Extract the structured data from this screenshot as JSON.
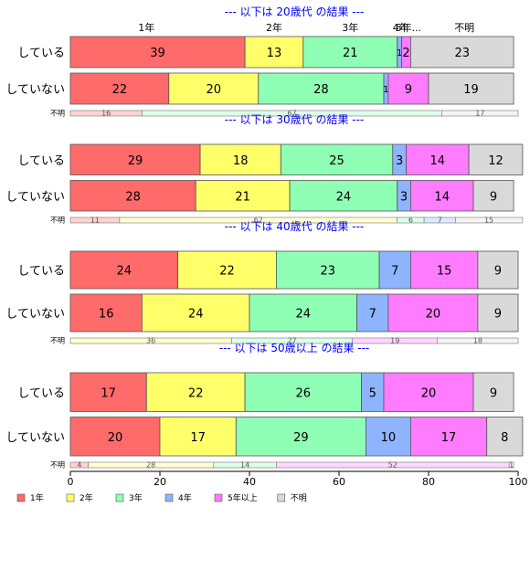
{
  "chart_data": {
    "type": "bar",
    "orientation": "horizontal",
    "stacked": true,
    "percent": true,
    "xlim": [
      0,
      100
    ],
    "x_ticks": [
      0,
      20,
      40,
      60,
      80,
      100
    ],
    "legend_placement": "bottom",
    "colors": [
      "#ff6a6a",
      "#ffff6a",
      "#8effb4",
      "#8eb4ff",
      "#ff7bff",
      "#d9d9d9"
    ],
    "series": [
      "1年",
      "2年",
      "3年",
      "4年",
      "5年以上",
      "不明"
    ],
    "top_labels": [
      {
        "label": "1年",
        "x": 17
      },
      {
        "label": "2年",
        "x": 45.5
      },
      {
        "label": "3年",
        "x": 62.5
      },
      {
        "label": "4年",
        "x": 73.8
      },
      {
        "label": "5年...",
        "x": 75.5
      },
      {
        "label": "不明",
        "x": 88
      }
    ],
    "panels": [
      {
        "title": "--- 以下は 20歳代 の結果 ---",
        "rows": [
          {
            "label": "している",
            "values": [
              39,
              13,
              21,
              1,
              2,
              23
            ]
          },
          {
            "label": "していない",
            "values": [
              22,
              20,
              28,
              1,
              9,
              19
            ]
          }
        ],
        "unknown": {
          "label": "不明",
          "values": [
            16,
            0,
            67,
            0,
            0,
            17
          ]
        }
      },
      {
        "title": "--- 以下は 30歳代 の結果 ---",
        "rows": [
          {
            "label": "している",
            "values": [
              29,
              18,
              25,
              3,
              14,
              12
            ]
          },
          {
            "label": "していない",
            "values": [
              28,
              21,
              24,
              3,
              14,
              9
            ]
          }
        ],
        "unknown": {
          "label": "不明",
          "values": [
            11,
            62,
            6,
            7,
            0,
            15
          ]
        }
      },
      {
        "title": "--- 以下は 40歳代 の結果 ---",
        "rows": [
          {
            "label": "している",
            "values": [
              24,
              22,
              23,
              7,
              15,
              9
            ]
          },
          {
            "label": "していない",
            "values": [
              16,
              24,
              24,
              7,
              20,
              9
            ]
          }
        ],
        "unknown": {
          "label": "不明",
          "values": [
            0,
            36,
            27,
            0,
            19,
            18
          ]
        }
      },
      {
        "title": "--- 以下は 50歳以上 の結果 ---",
        "rows": [
          {
            "label": "している",
            "values": [
              17,
              22,
              26,
              5,
              20,
              9
            ]
          },
          {
            "label": "していない",
            "values": [
              20,
              17,
              29,
              10,
              17,
              8
            ]
          }
        ],
        "unknown": {
          "label": "不明",
          "values": [
            4,
            28,
            14,
            0,
            52,
            1
          ]
        }
      }
    ]
  }
}
